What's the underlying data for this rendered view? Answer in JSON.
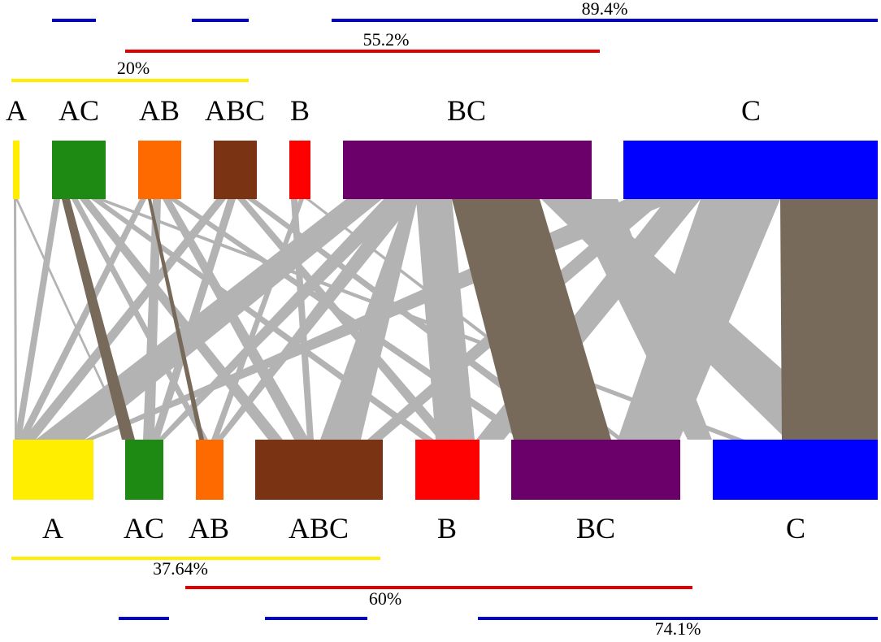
{
  "top_nodes": [
    {
      "id": "A",
      "label": "A",
      "color": "#ffee00"
    },
    {
      "id": "AC",
      "label": "AC",
      "color": "#1e8a14"
    },
    {
      "id": "AB",
      "label": "AB",
      "color": "#ff6a00"
    },
    {
      "id": "ABC",
      "label": "ABC",
      "color": "#7a3413"
    },
    {
      "id": "B",
      "label": "B",
      "color": "#ff0000"
    },
    {
      "id": "BC",
      "label": "BC",
      "color": "#6b006b"
    },
    {
      "id": "C",
      "label": "C",
      "color": "#0000ff"
    }
  ],
  "bottom_nodes": [
    {
      "id": "A",
      "label": "A",
      "color": "#ffee00"
    },
    {
      "id": "AC",
      "label": "AC",
      "color": "#1e8a14"
    },
    {
      "id": "AB",
      "label": "AB",
      "color": "#ff6a00"
    },
    {
      "id": "ABC",
      "label": "ABC",
      "color": "#7a3413"
    },
    {
      "id": "B",
      "label": "B",
      "color": "#ff0000"
    },
    {
      "id": "BC",
      "label": "BC",
      "color": "#6b006b"
    },
    {
      "id": "C",
      "label": "C",
      "color": "#0000ff"
    }
  ],
  "top_brackets": [
    {
      "label": "89.4%",
      "color": "#0000cc"
    },
    {
      "label": "55.2%",
      "color": "#e00000"
    },
    {
      "label": "20%",
      "color": "#ffee00"
    }
  ],
  "bottom_brackets": [
    {
      "label": "37.64%",
      "color": "#ffee00"
    },
    {
      "label": "60%",
      "color": "#e00000"
    },
    {
      "label": "74.1%",
      "color": "#0000cc"
    }
  ],
  "colors": {
    "flow_other": "#b3b3b3",
    "flow_same": "#786a5a"
  }
}
